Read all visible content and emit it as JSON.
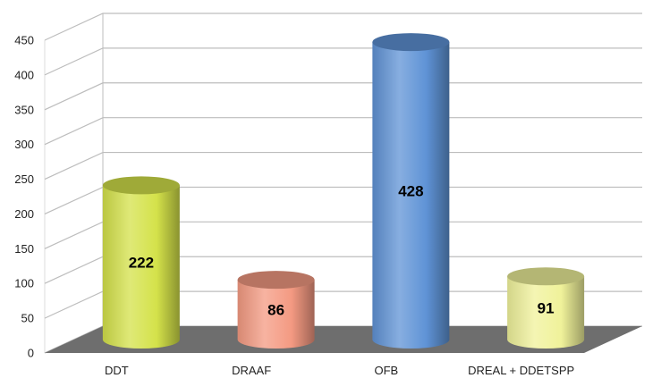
{
  "chart_data": {
    "type": "bar",
    "style": "3d-cylinder",
    "title": "",
    "xlabel": "",
    "ylabel": "",
    "categories": [
      "DDT",
      "DRAAF",
      "OFB",
      "DREAL + DDETSPP"
    ],
    "values": [
      222,
      86,
      428,
      91
    ],
    "data_labels": [
      "222",
      "86",
      "428",
      "91"
    ],
    "colors": [
      "#d4e24a",
      "#f49a82",
      "#5f93d6",
      "#f0f29a"
    ],
    "floor_color": "#6e6e6e",
    "grid_color": "#bdbdbd",
    "ylim": [
      0,
      450
    ],
    "yticks": [
      0,
      50,
      100,
      150,
      200,
      250,
      300,
      350,
      400,
      450
    ],
    "grid": true,
    "legend": "none"
  }
}
